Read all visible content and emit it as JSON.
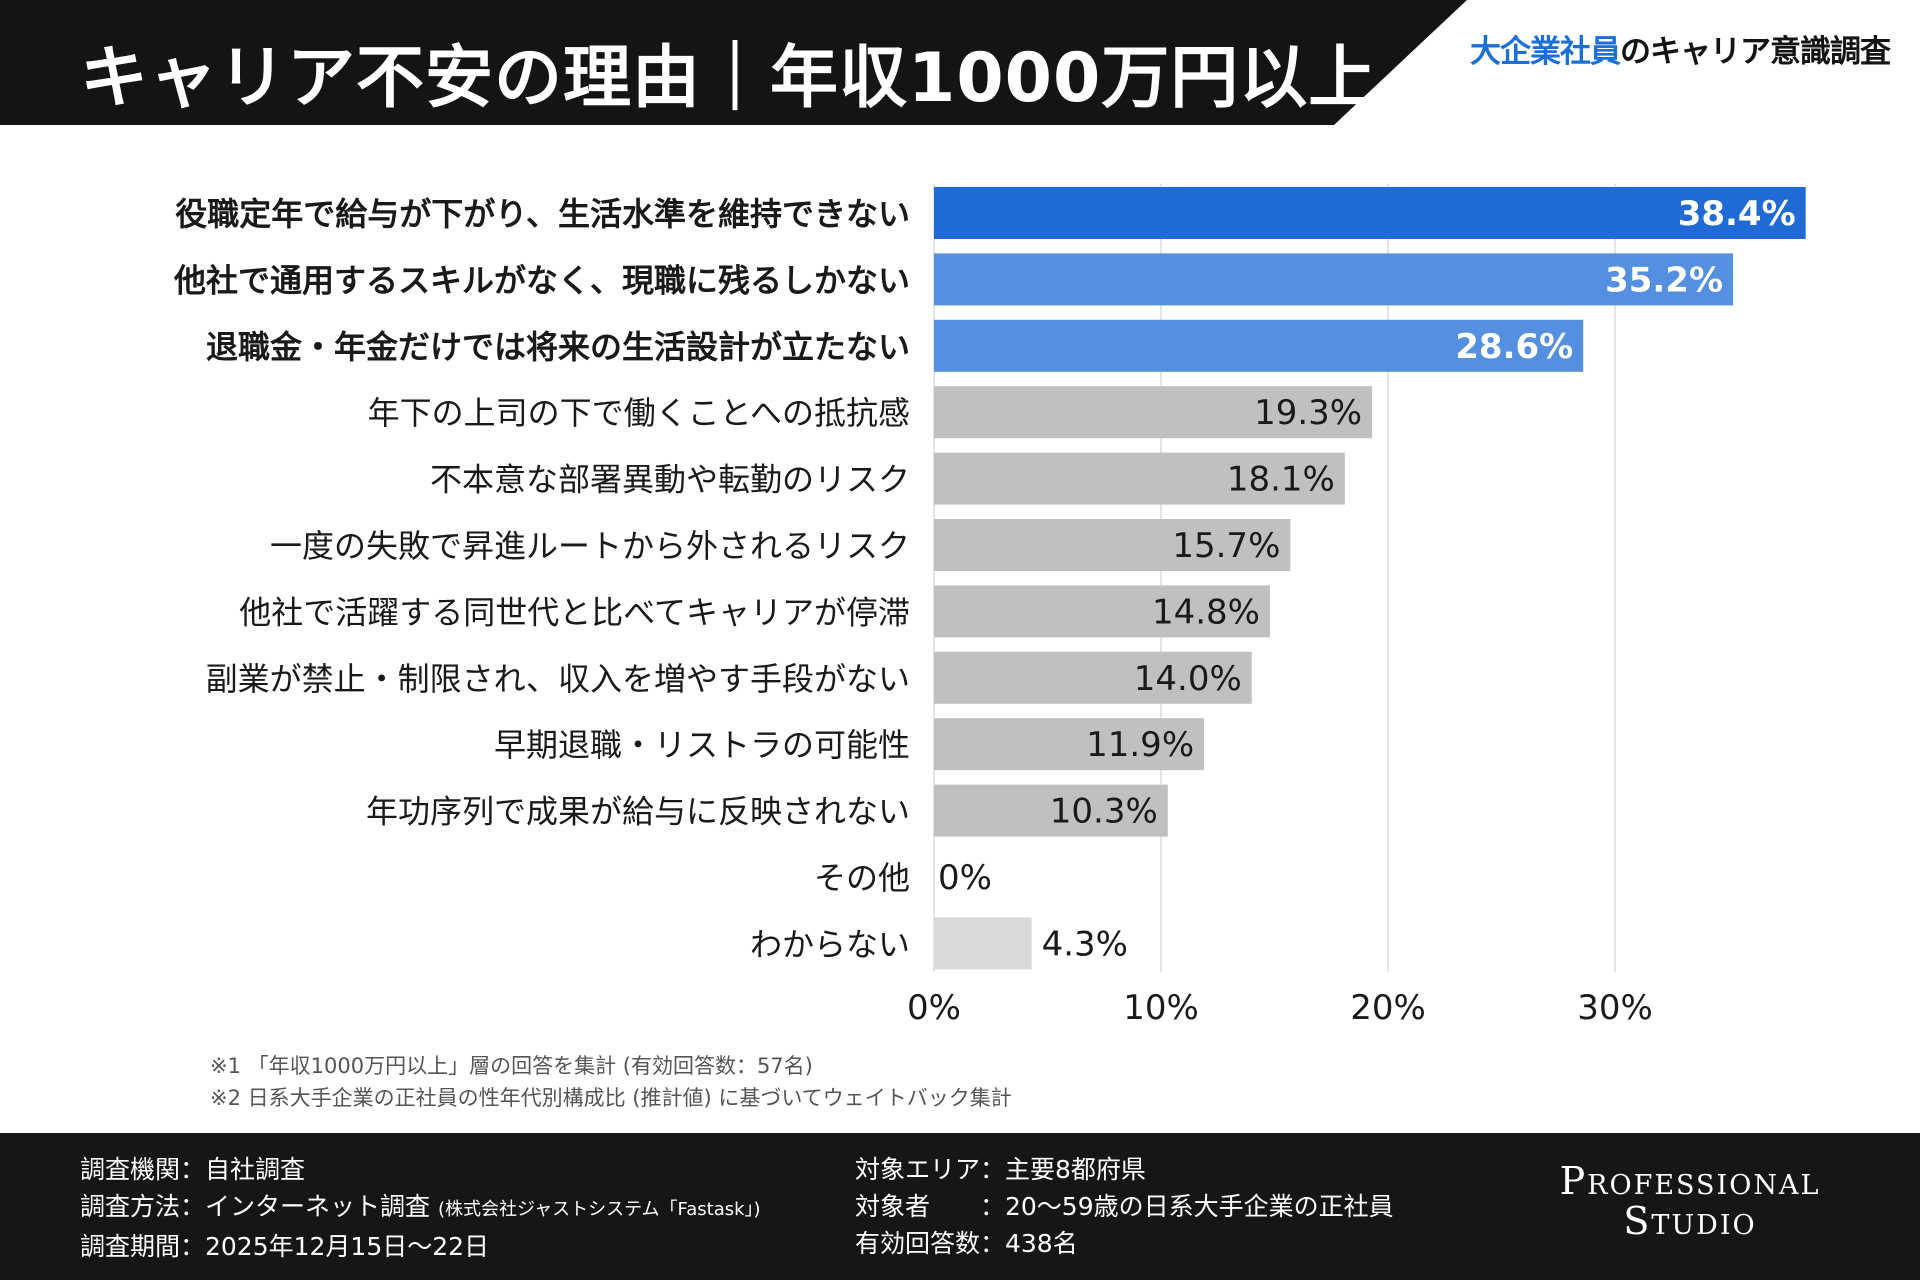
{
  "header": {
    "title": "キャリア不安の理由｜年収1000万円以上",
    "subtitle_highlight": "大企業社員",
    "subtitle_rest": "のキャリア意識調査"
  },
  "colors": {
    "primary": "#1f6ad4",
    "secondary": "#548fe0",
    "gray": "#c0c0c0",
    "light": "#d9d9d9",
    "grid": "#dcdcdc"
  },
  "chart_data": {
    "type": "bar",
    "orientation": "horizontal",
    "categories": [
      "役職定年で給与が下がり、生活水準を維持できない",
      "他社で通用するスキルがなく、現職に残るしかない",
      "退職金・年金だけでは将来の生活設計が立たない",
      "年下の上司の下で働くことへの抵抗感",
      "不本意な部署異動や転勤のリスク",
      "一度の失敗で昇進ルートから外されるリスク",
      "他社で活躍する同世代と比べてキャリアが停滞",
      "副業が禁止・制限され、収入を増やす手段がない",
      "早期退職・リストラの可能性",
      "年功序列で成果が給与に反映されない",
      "その他",
      "わからない"
    ],
    "values": [
      38.4,
      35.2,
      28.6,
      19.3,
      18.1,
      15.7,
      14.8,
      14.0,
      11.9,
      10.3,
      0,
      4.3
    ],
    "data_labels": [
      "38.4%",
      "35.2%",
      "28.6%",
      "19.3%",
      "18.1%",
      "15.7%",
      "14.8%",
      "14.0%",
      "11.9%",
      "10.3%",
      "0%",
      "4.3%"
    ],
    "bar_colors": [
      "#1f6ad4",
      "#548fe0",
      "#548fe0",
      "#c0c0c0",
      "#c0c0c0",
      "#c0c0c0",
      "#c0c0c0",
      "#c0c0c0",
      "#c0c0c0",
      "#c0c0c0",
      "#c0c0c0",
      "#d9d9d9"
    ],
    "bold_categories": [
      true,
      true,
      true,
      false,
      false,
      false,
      false,
      false,
      false,
      false,
      false,
      false
    ],
    "xlim": [
      0,
      40
    ],
    "xticks": [
      0,
      10,
      20,
      30
    ],
    "xtick_labels": [
      "0%",
      "10%",
      "20%",
      "30%"
    ],
    "grid": true,
    "title": "",
    "xlabel": "",
    "ylabel": ""
  },
  "notes": [
    "※1 「年収1000万円以上」層の回答を集計 (有効回答数：57名)",
    "※2 日系大手企業の正社員の性年代別構成比 (推計値) に基づいてウェイトバック集計"
  ],
  "footer": {
    "left": [
      "調査機関：自社調査",
      "調査方法：インターネット調査",
      "調査期間：2025年12月15日〜22日"
    ],
    "method_note": "(株式会社ジャストシステム「Fastask」)",
    "right": [
      "対象エリア：主要8都府県",
      "対象者　　：20〜59歳の日系大手企業の正社員",
      "有効回答数：438名"
    ],
    "logo": [
      "Professional",
      "Studio"
    ]
  }
}
